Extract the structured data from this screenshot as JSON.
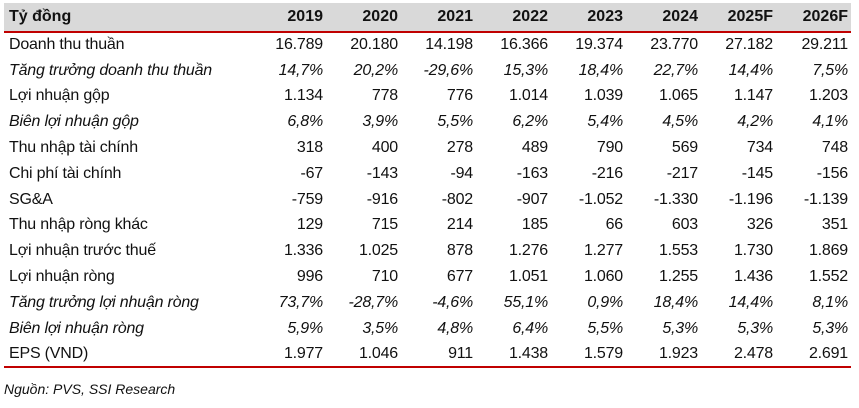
{
  "table": {
    "header": [
      "Tỷ đồng",
      "2019",
      "2020",
      "2021",
      "2022",
      "2023",
      "2024",
      "2025F",
      "2026F"
    ],
    "rows": [
      {
        "label": "Doanh thu thuần",
        "italic": false,
        "values": [
          "16.789",
          "20.180",
          "14.198",
          "16.366",
          "19.374",
          "23.770",
          "27.182",
          "29.211"
        ]
      },
      {
        "label": "Tăng trưởng doanh thu thuần",
        "italic": true,
        "values": [
          "14,7%",
          "20,2%",
          "-29,6%",
          "15,3%",
          "18,4%",
          "22,7%",
          "14,4%",
          "7,5%"
        ]
      },
      {
        "label": "Lợi nhuận gộp",
        "italic": false,
        "values": [
          "1.134",
          "778",
          "776",
          "1.014",
          "1.039",
          "1.065",
          "1.147",
          "1.203"
        ]
      },
      {
        "label": "Biên lợi nhuận gộp",
        "italic": true,
        "values": [
          "6,8%",
          "3,9%",
          "5,5%",
          "6,2%",
          "5,4%",
          "4,5%",
          "4,2%",
          "4,1%"
        ]
      },
      {
        "label": "Thu nhập tài chính",
        "italic": false,
        "values": [
          "318",
          "400",
          "278",
          "489",
          "790",
          "569",
          "734",
          "748"
        ]
      },
      {
        "label": "Chi phí tài chính",
        "italic": false,
        "values": [
          "-67",
          "-143",
          "-94",
          "-163",
          "-216",
          "-217",
          "-145",
          "-156"
        ]
      },
      {
        "label": "SG&A",
        "italic": false,
        "values": [
          "-759",
          "-916",
          "-802",
          "-907",
          "-1.052",
          "-1.330",
          "-1.196",
          "-1.139"
        ]
      },
      {
        "label": "Thu nhập ròng khác",
        "italic": false,
        "values": [
          "129",
          "715",
          "214",
          "185",
          "66",
          "603",
          "326",
          "351"
        ]
      },
      {
        "label": "Lợi nhuận trước thuế",
        "italic": false,
        "values": [
          "1.336",
          "1.025",
          "878",
          "1.276",
          "1.277",
          "1.553",
          "1.730",
          "1.869"
        ]
      },
      {
        "label": "Lợi nhuận ròng",
        "italic": false,
        "values": [
          "996",
          "710",
          "677",
          "1.051",
          "1.060",
          "1.255",
          "1.436",
          "1.552"
        ]
      },
      {
        "label": "Tăng trưởng lợi nhuận ròng",
        "italic": true,
        "values": [
          "73,7%",
          "-28,7%",
          "-4,6%",
          "55,1%",
          "0,9%",
          "18,4%",
          "14,4%",
          "8,1%"
        ]
      },
      {
        "label": "Biên lợi nhuận ròng",
        "italic": true,
        "values": [
          "5,9%",
          "3,5%",
          "4,8%",
          "6,4%",
          "5,5%",
          "5,3%",
          "5,3%",
          "5,3%"
        ]
      },
      {
        "label": "EPS (VND)",
        "italic": false,
        "values": [
          "1.977",
          "1.046",
          "911",
          "1.438",
          "1.579",
          "1.923",
          "2.478",
          "2.691"
        ]
      }
    ]
  },
  "source": "Nguồn: PVS, SSI Research",
  "colors": {
    "header_bg": "#d9d9d9",
    "rule": "#c00000",
    "text": "#111111"
  }
}
